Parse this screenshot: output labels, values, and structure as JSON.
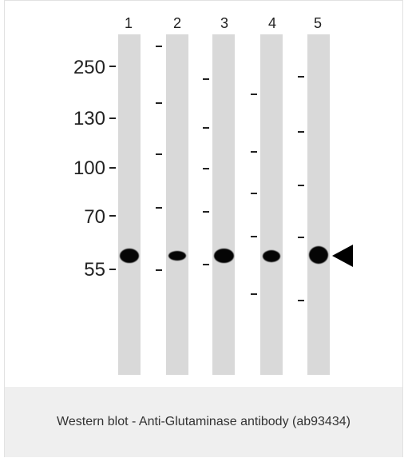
{
  "lane_numbers": [
    "1",
    "2",
    "3",
    "4",
    "5"
  ],
  "markers": [
    "250",
    "130",
    "100",
    "70",
    "55"
  ],
  "caption": "Western blot - Anti-Glutaminase antibody (ab93434)"
}
